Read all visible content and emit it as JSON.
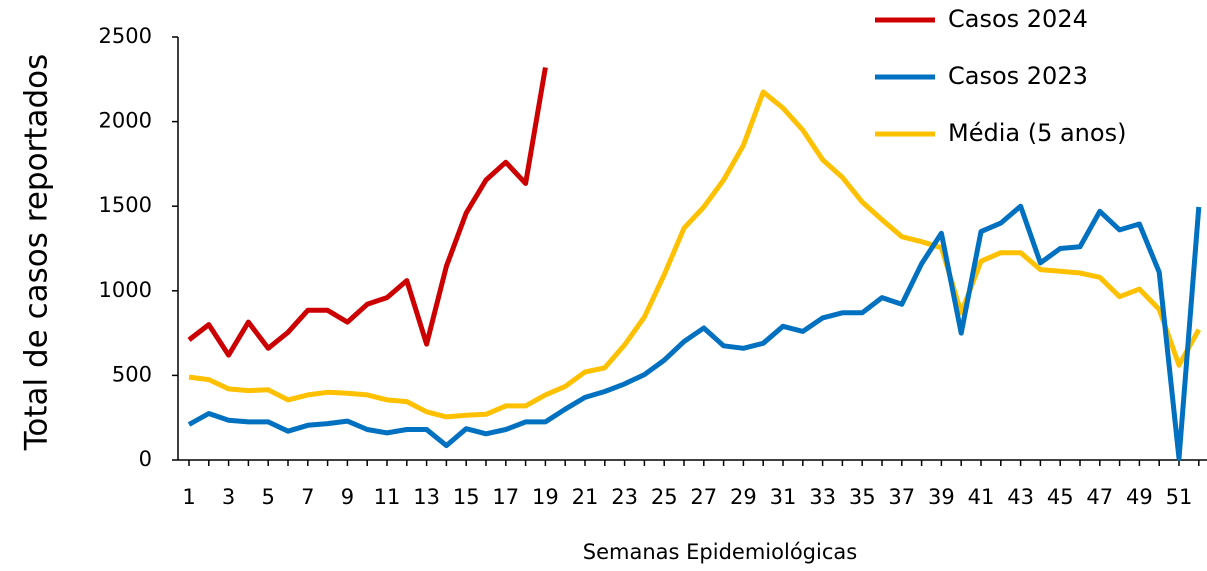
{
  "chart_data": {
    "type": "line",
    "y_label": "Total de casos reportados",
    "x_label": "Semanas Epidemiológicas",
    "categories": [
      "1",
      null,
      "3",
      null,
      "5",
      null,
      "7",
      null,
      "9",
      null,
      "11",
      null,
      "13",
      null,
      "15",
      null,
      "17",
      null,
      "19",
      null,
      "21",
      null,
      "23",
      null,
      "25",
      null,
      "27",
      null,
      "29",
      null,
      "31",
      null,
      "33",
      null,
      "35",
      null,
      "37",
      null,
      "39",
      null,
      "41",
      null,
      "43",
      null,
      "45",
      null,
      "47",
      null,
      "49",
      null,
      "51",
      null
    ],
    "series": [
      {
        "name": "Casos 2024",
        "color": "#cc0000",
        "values": [
          710,
          800,
          620,
          815,
          660,
          755,
          885,
          885,
          815,
          920,
          960,
          1060,
          685,
          1145,
          1460,
          1655,
          1760,
          1635,
          2320,
          null,
          null,
          null,
          null,
          null,
          null,
          null,
          null,
          null,
          null,
          null,
          null,
          null,
          null,
          null,
          null,
          null,
          null,
          null,
          null,
          null,
          null,
          null,
          null,
          null,
          null,
          null,
          null,
          null,
          null,
          null,
          null,
          null
        ]
      },
      {
        "name": "Casos 2023",
        "color": "#0070c0",
        "values": [
          210,
          275,
          235,
          225,
          225,
          170,
          205,
          215,
          230,
          180,
          160,
          180,
          180,
          85,
          185,
          155,
          180,
          225,
          225,
          300,
          370,
          405,
          450,
          505,
          590,
          700,
          780,
          675,
          660,
          690,
          790,
          760,
          840,
          870,
          870,
          960,
          920,
          1160,
          1340,
          750,
          1350,
          1400,
          1500,
          1165,
          1250,
          1260,
          1470,
          1360,
          1395,
          1110,
          10,
          1495
        ]
      },
      {
        "name": "Média (5 anos)",
        "color": "#ffc000",
        "values": [
          490,
          475,
          420,
          410,
          415,
          355,
          385,
          400,
          395,
          385,
          355,
          345,
          285,
          255,
          265,
          270,
          320,
          320,
          385,
          435,
          520,
          545,
          680,
          845,
          1095,
          1370,
          1495,
          1655,
          1860,
          2175,
          2080,
          1950,
          1775,
          1670,
          1525,
          1420,
          1320,
          1290,
          1255,
          870,
          1175,
          1225,
          1225,
          1125,
          1115,
          1105,
          1080,
          965,
          1010,
          890,
          560,
          770
        ]
      }
    ],
    "ylim": [
      0,
      2500
    ],
    "yticks": [
      0,
      500,
      1000,
      1500,
      2000,
      2500
    ],
    "grid": false,
    "legend": "top-right"
  }
}
